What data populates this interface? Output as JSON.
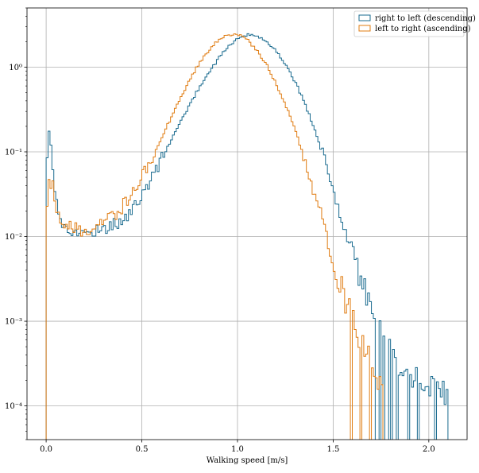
{
  "chart_data": {
    "type": "histogram",
    "xlabel": "Walking speed [m/s]",
    "ylabel": "",
    "xlim": [
      -0.1,
      2.2
    ],
    "ylim": [
      4e-05,
      5.0
    ],
    "yscale": "log",
    "grid": true,
    "legend_position": "top-right",
    "x_ticks": [
      0.0,
      0.5,
      1.0,
      1.5,
      2.0
    ],
    "x_tick_labels": [
      "0.0",
      "0.5",
      "1.0",
      "1.5",
      "2.0"
    ],
    "y_ticks": [
      0.0001,
      0.001,
      0.01,
      0.1,
      1
    ],
    "y_tick_labels": [
      "10⁻⁴",
      "10⁻³",
      "10⁻²",
      "10⁻¹",
      "10⁰"
    ],
    "series": [
      {
        "name": "right to left (descending)",
        "color": "#1a6b8f",
        "points": [
          [
            0.0,
            0.08
          ],
          [
            0.01,
            0.18
          ],
          [
            0.02,
            0.12
          ],
          [
            0.03,
            0.07
          ],
          [
            0.04,
            0.04
          ],
          [
            0.05,
            0.025
          ],
          [
            0.06,
            0.02
          ],
          [
            0.07,
            0.016
          ],
          [
            0.08,
            0.014
          ],
          [
            0.09,
            0.013
          ],
          [
            0.1,
            0.012
          ],
          [
            0.12,
            0.012
          ],
          [
            0.14,
            0.011
          ],
          [
            0.16,
            0.011
          ],
          [
            0.18,
            0.011
          ],
          [
            0.2,
            0.011
          ],
          [
            0.22,
            0.011
          ],
          [
            0.24,
            0.012
          ],
          [
            0.26,
            0.012
          ],
          [
            0.28,
            0.012
          ],
          [
            0.3,
            0.013
          ],
          [
            0.32,
            0.013
          ],
          [
            0.34,
            0.014
          ],
          [
            0.36,
            0.014
          ],
          [
            0.38,
            0.015
          ],
          [
            0.4,
            0.016
          ],
          [
            0.42,
            0.018
          ],
          [
            0.44,
            0.02
          ],
          [
            0.46,
            0.023
          ],
          [
            0.48,
            0.027
          ],
          [
            0.5,
            0.032
          ],
          [
            0.55,
            0.05
          ],
          [
            0.6,
            0.085
          ],
          [
            0.65,
            0.14
          ],
          [
            0.7,
            0.23
          ],
          [
            0.75,
            0.38
          ],
          [
            0.8,
            0.6
          ],
          [
            0.85,
            0.9
          ],
          [
            0.9,
            1.3
          ],
          [
            0.95,
            1.8
          ],
          [
            1.0,
            2.2
          ],
          [
            1.05,
            2.4
          ],
          [
            1.1,
            2.3
          ],
          [
            1.15,
            2.0
          ],
          [
            1.2,
            1.55
          ],
          [
            1.25,
            1.05
          ],
          [
            1.3,
            0.65
          ],
          [
            1.35,
            0.36
          ],
          [
            1.4,
            0.18
          ],
          [
            1.45,
            0.08
          ],
          [
            1.5,
            0.035
          ],
          [
            1.55,
            0.014
          ],
          [
            1.6,
            0.006
          ],
          [
            1.65,
            0.0028
          ],
          [
            1.7,
            0.0015
          ],
          [
            1.75,
            0.00085
          ],
          [
            1.8,
            0.00045
          ],
          [
            1.85,
            0.0003
          ],
          [
            1.9,
            0.00025
          ],
          [
            1.95,
            0.0002
          ],
          [
            2.0,
            0.0002
          ],
          [
            2.05,
            0.00015
          ],
          [
            2.1,
            0.00015
          ]
        ]
      },
      {
        "name": "left to right (ascending)",
        "color": "#e07c12",
        "points": [
          [
            0.0,
            0.027
          ],
          [
            0.01,
            0.05
          ],
          [
            0.02,
            0.045
          ],
          [
            0.03,
            0.04
          ],
          [
            0.04,
            0.03
          ],
          [
            0.05,
            0.022
          ],
          [
            0.06,
            0.018
          ],
          [
            0.07,
            0.016
          ],
          [
            0.08,
            0.015
          ],
          [
            0.09,
            0.015
          ],
          [
            0.1,
            0.015
          ],
          [
            0.12,
            0.014
          ],
          [
            0.14,
            0.013
          ],
          [
            0.16,
            0.012
          ],
          [
            0.18,
            0.012
          ],
          [
            0.2,
            0.012
          ],
          [
            0.22,
            0.012
          ],
          [
            0.24,
            0.012
          ],
          [
            0.26,
            0.013
          ],
          [
            0.28,
            0.014
          ],
          [
            0.3,
            0.015
          ],
          [
            0.32,
            0.016
          ],
          [
            0.34,
            0.017
          ],
          [
            0.36,
            0.019
          ],
          [
            0.38,
            0.021
          ],
          [
            0.4,
            0.024
          ],
          [
            0.42,
            0.028
          ],
          [
            0.44,
            0.033
          ],
          [
            0.46,
            0.038
          ],
          [
            0.48,
            0.045
          ],
          [
            0.5,
            0.055
          ],
          [
            0.55,
            0.09
          ],
          [
            0.6,
            0.15
          ],
          [
            0.65,
            0.26
          ],
          [
            0.7,
            0.45
          ],
          [
            0.75,
            0.75
          ],
          [
            0.8,
            1.15
          ],
          [
            0.85,
            1.65
          ],
          [
            0.9,
            2.1
          ],
          [
            0.95,
            2.45
          ],
          [
            1.0,
            2.4
          ],
          [
            1.05,
            2.05
          ],
          [
            1.1,
            1.55
          ],
          [
            1.15,
            1.05
          ],
          [
            1.2,
            0.62
          ],
          [
            1.25,
            0.34
          ],
          [
            1.3,
            0.17
          ],
          [
            1.35,
            0.075
          ],
          [
            1.4,
            0.032
          ],
          [
            1.45,
            0.013
          ],
          [
            1.5,
            0.005
          ],
          [
            1.55,
            0.0022
          ],
          [
            1.6,
            0.001
          ],
          [
            1.65,
            0.00055
          ],
          [
            1.7,
            0.0003
          ],
          [
            1.75,
            0.00015
          ]
        ]
      }
    ]
  }
}
